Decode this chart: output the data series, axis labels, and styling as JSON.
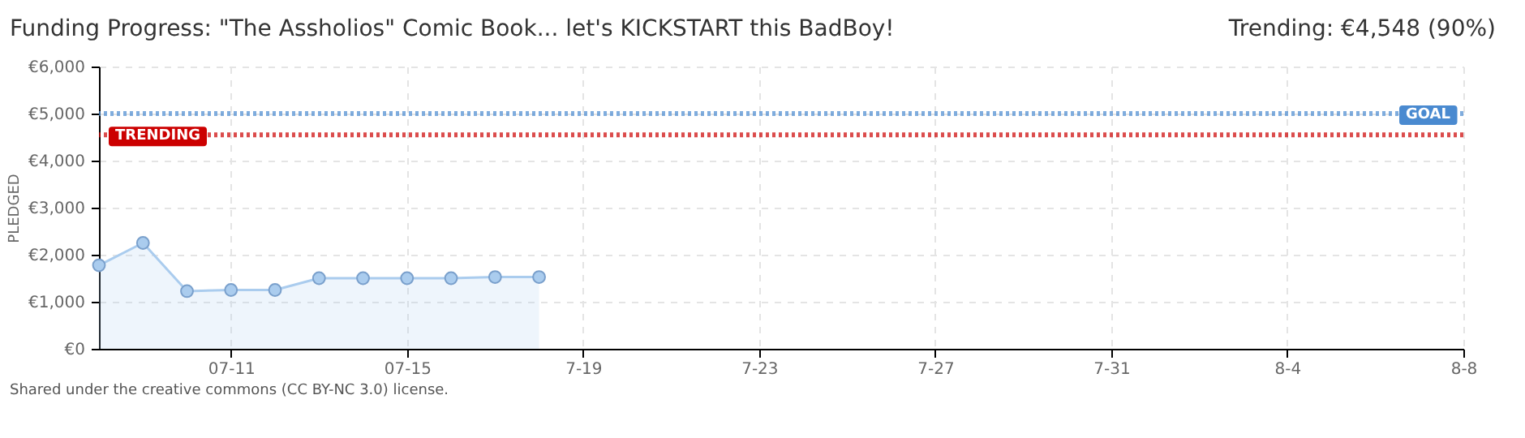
{
  "chart_data": {
    "type": "area",
    "title": "Funding Progress: \"The Assholios\" Comic Book... let's KICKSTART this BadBoy!",
    "subtitle": "Trending: €4,548 (90%)",
    "ylabel": "PLEDGED",
    "x": [
      "--07-08",
      "--07-09",
      "--07-10",
      "--07-11",
      "--07-12",
      "--07-13",
      "--07-14",
      "--07-15",
      "--07-16",
      "--07-17",
      "--07-18"
    ],
    "series": [
      {
        "color": "#aaccee",
        "values": [
          1775,
          2250,
          1225,
          1250,
          1250,
          1500,
          1500,
          1500,
          1500,
          1525,
          1525
        ]
      }
    ],
    "xlim": [
      "--07-08",
      "--08-08"
    ],
    "xticks": [
      {
        "value": "--07-11",
        "label": "07-11"
      },
      {
        "value": "--07-15",
        "label": "07-15"
      },
      {
        "value": "--07-19",
        "label": "7-19"
      },
      {
        "value": "--07-23",
        "label": "7-23"
      },
      {
        "value": "--07-27",
        "label": "7-27"
      },
      {
        "value": "--07-31",
        "label": "7-31"
      },
      {
        "value": "--08-04",
        "label": "8-4"
      },
      {
        "value": "--08-08",
        "label": "8-8"
      }
    ],
    "ylim": [
      0,
      6000
    ],
    "yticks": [
      {
        "value": 0,
        "label": "€0"
      },
      {
        "value": 1000,
        "label": "€1,000"
      },
      {
        "value": 2000,
        "label": "€2,000"
      },
      {
        "value": 3000,
        "label": "€3,000"
      },
      {
        "value": 4000,
        "label": "€4,000"
      },
      {
        "value": 5000,
        "label": "€5,000"
      },
      {
        "value": 6000,
        "label": "€6,000"
      }
    ],
    "ref_lines": [
      {
        "axis": "y",
        "value": 5000,
        "label": "GOAL",
        "color": "#4a8ad0",
        "line_style": "dotted"
      },
      {
        "axis": "y",
        "value": 4548,
        "label": "TRENDING",
        "color": "#cc0000",
        "line_style": "dotted"
      }
    ],
    "grid": true,
    "marker": "circle",
    "legend": false,
    "annotations": [
      "Shared under the creative commons (CC BY-NC 3.0) license."
    ]
  }
}
